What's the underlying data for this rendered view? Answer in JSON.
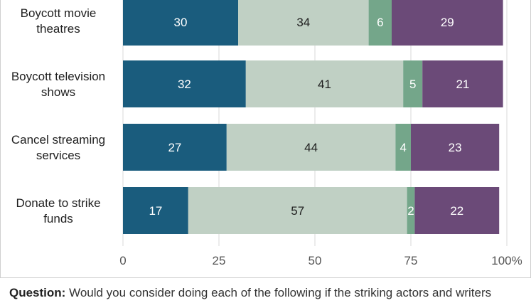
{
  "chart_data": {
    "type": "bar",
    "orientation": "horizontal",
    "stacked": true,
    "categories": [
      "Boycott movie theatres",
      "Boycott television shows",
      "Cancel streaming services",
      "Donate to strike funds"
    ],
    "category_lines": [
      [
        "Boycott movie",
        "theatres"
      ],
      [
        "Boycott television",
        "shows"
      ],
      [
        "Cancel streaming",
        "services"
      ],
      [
        "Donate to strike",
        "funds"
      ]
    ],
    "series": [
      {
        "values": [
          30,
          32,
          27,
          17
        ],
        "color": "#1a5c7d",
        "label_color": "#ffffff"
      },
      {
        "values": [
          34,
          41,
          44,
          57
        ],
        "color": "#c0d0c4",
        "label_color": "#1f1f1f"
      },
      {
        "values": [
          6,
          5,
          4,
          2
        ],
        "color": "#74a68a",
        "label_color": "#ffffff"
      },
      {
        "values": [
          29,
          21,
          23,
          22
        ],
        "color": "#6b4a78",
        "label_color": "#ffffff"
      }
    ],
    "xlim": [
      0,
      100
    ],
    "xticks": [
      "0",
      "25",
      "50",
      "75",
      "100%"
    ],
    "xtick_values": [
      0,
      25,
      50,
      75,
      100
    ],
    "grid": true
  },
  "question": {
    "label": "Question:",
    "text": "Would you consider doing each of the following if the striking actors and writers"
  }
}
